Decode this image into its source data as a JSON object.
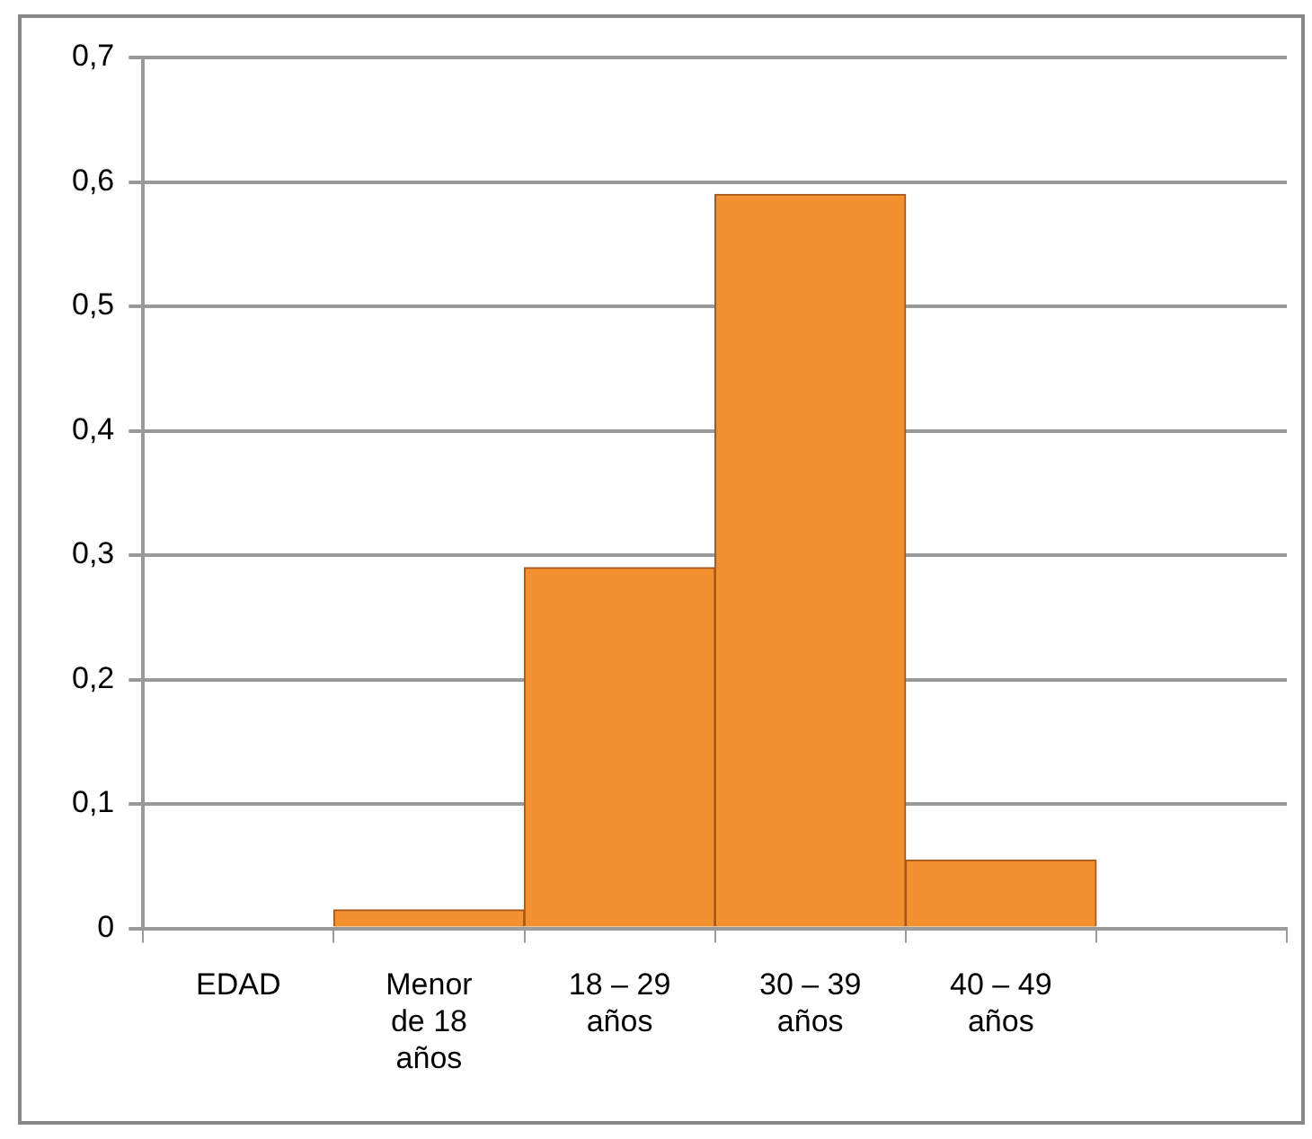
{
  "chart_data": {
    "type": "bar",
    "categories": [
      "EDAD",
      "Menor de 18 años",
      "18 – 29 años",
      "30 – 39 años",
      "40 – 49 años",
      null
    ],
    "values": [
      null,
      0.015,
      0.29,
      0.59,
      0.055,
      null
    ],
    "color": "#f39130",
    "ylim": [
      0,
      0.7
    ],
    "yticks": [
      {
        "value": 0,
        "label": "0"
      },
      {
        "value": 0.1,
        "label": "0,1"
      },
      {
        "value": 0.2,
        "label": "0,2"
      },
      {
        "value": 0.3,
        "label": "0,3"
      },
      {
        "value": 0.4,
        "label": "0,4"
      },
      {
        "value": 0.5,
        "label": "0,5"
      },
      {
        "value": 0.6,
        "label": "0,6"
      },
      {
        "value": 0.7,
        "label": "0,7"
      }
    ],
    "grid": "y",
    "legend": false
  }
}
